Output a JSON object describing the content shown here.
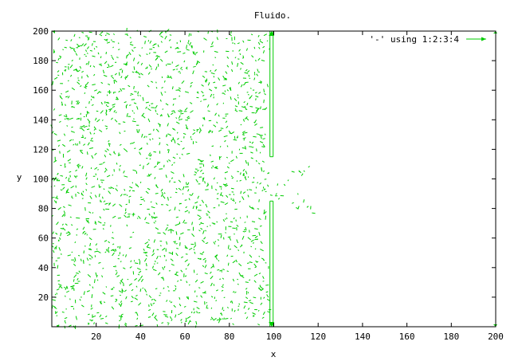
{
  "chart_data": {
    "type": "vector",
    "title": "Fluido.",
    "xlabel": "x",
    "ylabel": "y",
    "xlim": [
      0,
      200
    ],
    "ylim": [
      0,
      200
    ],
    "x_ticks": [
      20,
      40,
      60,
      80,
      100,
      120,
      140,
      160,
      180,
      200
    ],
    "y_ticks": [
      20,
      40,
      60,
      80,
      100,
      120,
      140,
      160,
      180,
      200
    ],
    "grid": false,
    "legend_position": "top-right",
    "series": [
      {
        "name": "'-' using 1:2:3:4",
        "color": "#00cc00",
        "style": "vectors",
        "description_of_visible_structure": [
          "left chamber x 0-99 densely filled with short random velocity vectors",
          "wall at x=99 from y=0 to y=85 and from y=115 to y=200, gap between",
          "small plume of vectors escaping through the gap into x 100-120, y 75-110",
          "right chamber x 100-200 empty"
        ],
        "wall": {
          "x": 99,
          "lower": [
            0,
            85
          ],
          "upper": [
            115,
            200
          ]
        },
        "left_region": {
          "x": [
            0,
            99
          ],
          "y": [
            0,
            200
          ]
        },
        "plume_region": {
          "x": [
            99,
            120
          ],
          "y": [
            75,
            112
          ]
        }
      }
    ]
  }
}
